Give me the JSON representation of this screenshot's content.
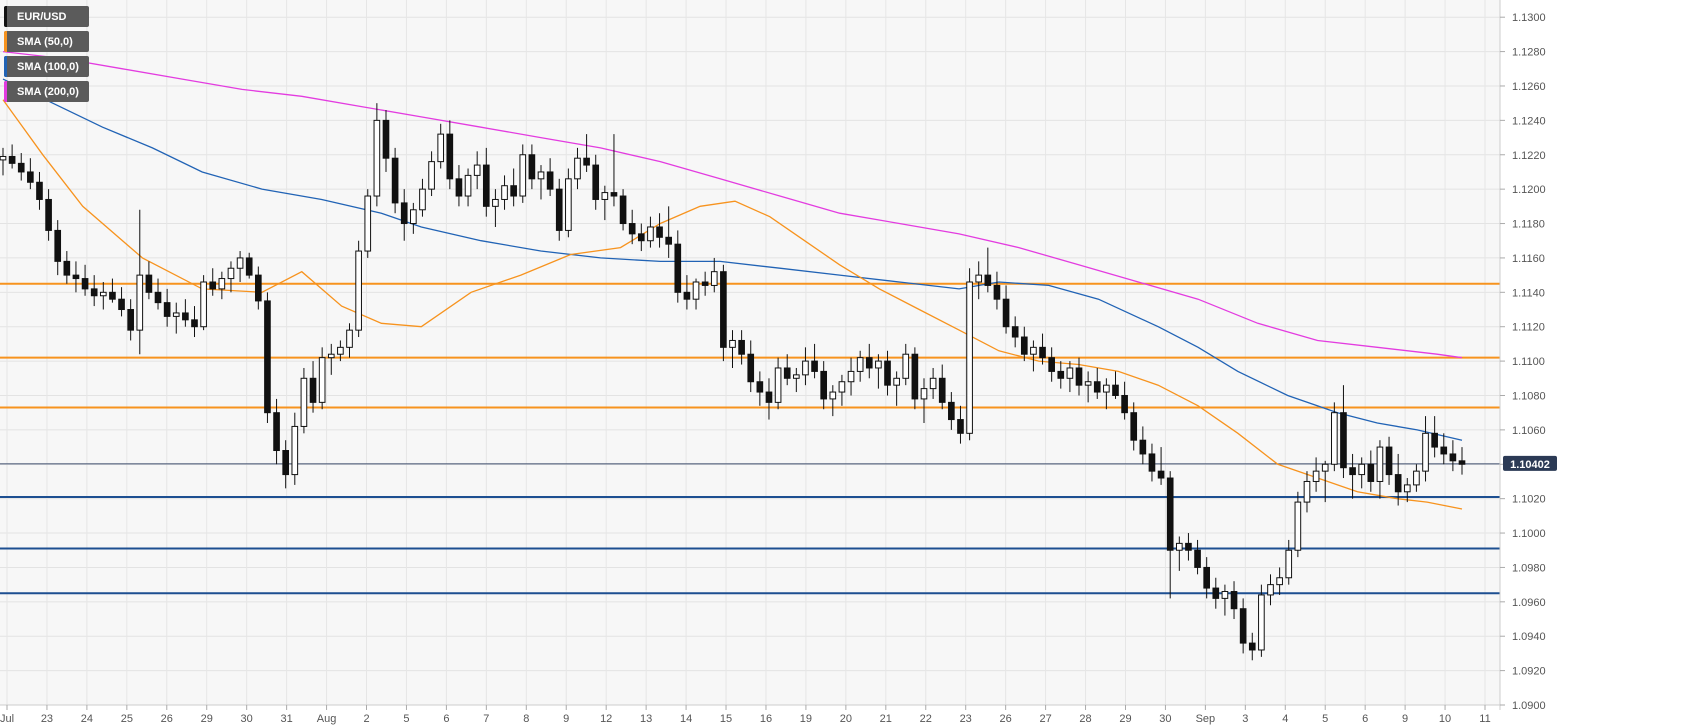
{
  "legend": [
    {
      "label": "EUR/USD",
      "color": "#111111"
    },
    {
      "label": "SMA (50,0)",
      "color": "#f7931e"
    },
    {
      "label": "SMA (100,0)",
      "color": "#2163b5"
    },
    {
      "label": "SMA (200,0)",
      "color": "#e33ce0"
    }
  ],
  "current_price_label": "1.10402",
  "chart_data": {
    "type": "candlestick",
    "title": "",
    "ylim": [
      1.09,
      1.131
    ],
    "y_ticks": [
      "1.0900",
      "1.0920",
      "1.0940",
      "1.0960",
      "1.0980",
      "1.1000",
      "1.1020",
      "1.1040",
      "1.1060",
      "1.1080",
      "1.1100",
      "1.1120",
      "1.1140",
      "1.1160",
      "1.1180",
      "1.1200",
      "1.1220",
      "1.1240",
      "1.1260",
      "1.1280",
      "1.1300"
    ],
    "x_ticks": [
      "Jul",
      "23",
      "24",
      "25",
      "26",
      "29",
      "30",
      "31",
      "Aug",
      "2",
      "5",
      "6",
      "7",
      "8",
      "9",
      "12",
      "13",
      "14",
      "15",
      "16",
      "19",
      "20",
      "21",
      "22",
      "23",
      "26",
      "27",
      "28",
      "29",
      "30",
      "Sep",
      "3",
      "4",
      "5",
      "6",
      "9",
      "10",
      "11"
    ],
    "grid": true,
    "levels": {
      "resistance": [
        1.1145,
        1.1102,
        1.1073
      ],
      "support": [
        1.1021,
        1.0991,
        1.0965
      ],
      "current": 1.10402
    },
    "colors": {
      "resistance": "#f7931e",
      "support": "#1d4f91",
      "current": "#3a4a6a",
      "sma50": "#f7931e",
      "sma100": "#2163b5",
      "sma200": "#e33ce0"
    },
    "candles_hourly_ohlc": [
      [
        1.1217,
        1.1224,
        1.1208,
        1.1219
      ],
      [
        1.1219,
        1.1226,
        1.1212,
        1.1215
      ],
      [
        1.1215,
        1.1221,
        1.1205,
        1.121
      ],
      [
        1.121,
        1.1218,
        1.12,
        1.1204
      ],
      [
        1.1204,
        1.121,
        1.1188,
        1.1194
      ],
      [
        1.1194,
        1.12,
        1.117,
        1.1176
      ],
      [
        1.1176,
        1.1182,
        1.115,
        1.1158
      ],
      [
        1.1158,
        1.1164,
        1.1145,
        1.115
      ],
      [
        1.115,
        1.1158,
        1.114,
        1.1148
      ],
      [
        1.1148,
        1.1156,
        1.1138,
        1.1142
      ],
      [
        1.1142,
        1.115,
        1.1132,
        1.1138
      ],
      [
        1.1138,
        1.1146,
        1.113,
        1.114
      ],
      [
        1.114,
        1.1148,
        1.1134,
        1.1136
      ],
      [
        1.1136,
        1.1143,
        1.1126,
        1.113
      ],
      [
        1.113,
        1.1136,
        1.1112,
        1.1118
      ],
      [
        1.1118,
        1.1188,
        1.1104,
        1.115
      ],
      [
        1.115,
        1.1158,
        1.1136,
        1.114
      ],
      [
        1.114,
        1.1148,
        1.113,
        1.1134
      ],
      [
        1.1134,
        1.1142,
        1.112,
        1.1126
      ],
      [
        1.1126,
        1.1134,
        1.1116,
        1.1128
      ],
      [
        1.1128,
        1.1136,
        1.112,
        1.1124
      ],
      [
        1.1124,
        1.1132,
        1.1114,
        1.112
      ],
      [
        1.112,
        1.115,
        1.1118,
        1.1146
      ],
      [
        1.1146,
        1.1154,
        1.1138,
        1.1142
      ],
      [
        1.1142,
        1.1152,
        1.1136,
        1.1148
      ],
      [
        1.1148,
        1.1158,
        1.114,
        1.1154
      ],
      [
        1.1154,
        1.1164,
        1.1146,
        1.116
      ],
      [
        1.116,
        1.1163,
        1.1148,
        1.115
      ],
      [
        1.115,
        1.1155,
        1.113,
        1.1135
      ],
      [
        1.1135,
        1.114,
        1.1064,
        1.107
      ],
      [
        1.107,
        1.1078,
        1.104,
        1.1048
      ],
      [
        1.1048,
        1.1054,
        1.1026,
        1.1034
      ],
      [
        1.1034,
        1.107,
        1.1028,
        1.1062
      ],
      [
        1.1062,
        1.1096,
        1.1058,
        1.109
      ],
      [
        1.109,
        1.11,
        1.107,
        1.1076
      ],
      [
        1.1076,
        1.1108,
        1.1072,
        1.1102
      ],
      [
        1.1102,
        1.111,
        1.1092,
        1.1104
      ],
      [
        1.1104,
        1.1112,
        1.11,
        1.1108
      ],
      [
        1.1108,
        1.1122,
        1.1102,
        1.1118
      ],
      [
        1.1118,
        1.117,
        1.1114,
        1.1164
      ],
      [
        1.1164,
        1.12,
        1.116,
        1.1196
      ],
      [
        1.1196,
        1.125,
        1.119,
        1.124
      ],
      [
        1.124,
        1.1246,
        1.121,
        1.1218
      ],
      [
        1.1218,
        1.1224,
        1.1186,
        1.1192
      ],
      [
        1.1192,
        1.12,
        1.117,
        1.118
      ],
      [
        1.118,
        1.1192,
        1.1174,
        1.1188
      ],
      [
        1.1188,
        1.1206,
        1.1184,
        1.12
      ],
      [
        1.12,
        1.1222,
        1.1196,
        1.1216
      ],
      [
        1.1216,
        1.1238,
        1.1212,
        1.1232
      ],
      [
        1.1232,
        1.124,
        1.12,
        1.1206
      ],
      [
        1.1206,
        1.1214,
        1.119,
        1.1196
      ],
      [
        1.1196,
        1.1212,
        1.119,
        1.1208
      ],
      [
        1.1208,
        1.1222,
        1.12,
        1.1214
      ],
      [
        1.1214,
        1.1224,
        1.1184,
        1.119
      ],
      [
        1.119,
        1.12,
        1.1178,
        1.1194
      ],
      [
        1.1194,
        1.1208,
        1.1188,
        1.1202
      ],
      [
        1.1202,
        1.1212,
        1.119,
        1.1196
      ],
      [
        1.1196,
        1.1226,
        1.1192,
        1.122
      ],
      [
        1.122,
        1.1226,
        1.12,
        1.1206
      ],
      [
        1.1206,
        1.1214,
        1.1194,
        1.121
      ],
      [
        1.121,
        1.1218,
        1.1196,
        1.12
      ],
      [
        1.12,
        1.1206,
        1.117,
        1.1176
      ],
      [
        1.1176,
        1.1212,
        1.1172,
        1.1206
      ],
      [
        1.1206,
        1.1224,
        1.12,
        1.1218
      ],
      [
        1.1218,
        1.1232,
        1.121,
        1.1214
      ],
      [
        1.1214,
        1.122,
        1.1188,
        1.1194
      ],
      [
        1.1194,
        1.1202,
        1.1182,
        1.1198
      ],
      [
        1.1198,
        1.1232,
        1.119,
        1.1196
      ],
      [
        1.1196,
        1.12,
        1.1176,
        1.118
      ],
      [
        1.118,
        1.1188,
        1.1168,
        1.1174
      ],
      [
        1.1174,
        1.118,
        1.1164,
        1.117
      ],
      [
        1.117,
        1.1184,
        1.1166,
        1.1178
      ],
      [
        1.1178,
        1.1186,
        1.1166,
        1.1172
      ],
      [
        1.1172,
        1.119,
        1.116,
        1.1168
      ],
      [
        1.1168,
        1.1176,
        1.1134,
        1.114
      ],
      [
        1.114,
        1.115,
        1.113,
        1.1136
      ],
      [
        1.1136,
        1.1148,
        1.113,
        1.1146
      ],
      [
        1.1146,
        1.1152,
        1.1138,
        1.1144
      ],
      [
        1.1144,
        1.116,
        1.114,
        1.1152
      ],
      [
        1.1152,
        1.1156,
        1.11,
        1.1108
      ],
      [
        1.1108,
        1.1118,
        1.1096,
        1.1112
      ],
      [
        1.1112,
        1.1118,
        1.1098,
        1.1104
      ],
      [
        1.1104,
        1.1112,
        1.1082,
        1.1088
      ],
      [
        1.1088,
        1.1094,
        1.1074,
        1.1082
      ],
      [
        1.1082,
        1.109,
        1.1066,
        1.1076
      ],
      [
        1.1076,
        1.1102,
        1.1072,
        1.1096
      ],
      [
        1.1096,
        1.1104,
        1.1086,
        1.109
      ],
      [
        1.109,
        1.1096,
        1.1082,
        1.1092
      ],
      [
        1.1092,
        1.1108,
        1.1086,
        1.11
      ],
      [
        1.11,
        1.111,
        1.109,
        1.1094
      ],
      [
        1.1094,
        1.11,
        1.1072,
        1.1078
      ],
      [
        1.1078,
        1.1086,
        1.1068,
        1.1082
      ],
      [
        1.1082,
        1.1092,
        1.1074,
        1.1088
      ],
      [
        1.1088,
        1.1102,
        1.108,
        1.1094
      ],
      [
        1.1094,
        1.1106,
        1.1088,
        1.1102
      ],
      [
        1.1102,
        1.111,
        1.109,
        1.1096
      ],
      [
        1.1096,
        1.1104,
        1.1084,
        1.11
      ],
      [
        1.11,
        1.1106,
        1.108,
        1.1086
      ],
      [
        1.1086,
        1.1094,
        1.1074,
        1.109
      ],
      [
        1.109,
        1.111,
        1.1086,
        1.1104
      ],
      [
        1.1104,
        1.1108,
        1.1072,
        1.1078
      ],
      [
        1.1078,
        1.109,
        1.1064,
        1.1084
      ],
      [
        1.1084,
        1.1096,
        1.1078,
        1.109
      ],
      [
        1.109,
        1.1098,
        1.1072,
        1.1076
      ],
      [
        1.1076,
        1.1082,
        1.106,
        1.1066
      ],
      [
        1.1066,
        1.1074,
        1.1052,
        1.1058
      ],
      [
        1.1058,
        1.1154,
        1.1054,
        1.1146
      ],
      [
        1.1146,
        1.1158,
        1.1136,
        1.115
      ],
      [
        1.115,
        1.1166,
        1.114,
        1.1144
      ],
      [
        1.1144,
        1.1152,
        1.113,
        1.1136
      ],
      [
        1.1136,
        1.1144,
        1.1116,
        1.112
      ],
      [
        1.112,
        1.1126,
        1.1108,
        1.1114
      ],
      [
        1.1114,
        1.112,
        1.11,
        1.1104
      ],
      [
        1.1104,
        1.1112,
        1.1094,
        1.1108
      ],
      [
        1.1108,
        1.1116,
        1.1098,
        1.1102
      ],
      [
        1.1102,
        1.1108,
        1.1088,
        1.1094
      ],
      [
        1.1094,
        1.11,
        1.1084,
        1.109
      ],
      [
        1.109,
        1.11,
        1.1082,
        1.1096
      ],
      [
        1.1096,
        1.1102,
        1.108,
        1.1086
      ],
      [
        1.1086,
        1.1094,
        1.1076,
        1.1088
      ],
      [
        1.1088,
        1.1096,
        1.1078,
        1.1082
      ],
      [
        1.1082,
        1.109,
        1.1072,
        1.1086
      ],
      [
        1.1086,
        1.1094,
        1.1078,
        1.108
      ],
      [
        1.108,
        1.1088,
        1.1066,
        1.107
      ],
      [
        1.107,
        1.1076,
        1.1048,
        1.1054
      ],
      [
        1.1054,
        1.1062,
        1.104,
        1.1046
      ],
      [
        1.1046,
        1.1052,
        1.103,
        1.1036
      ],
      [
        1.1036,
        1.105,
        1.1028,
        1.1032
      ],
      [
        1.1032,
        1.1036,
        1.0962,
        1.099
      ],
      [
        1.099,
        1.0998,
        1.0978,
        1.0994
      ],
      [
        1.0994,
        1.1,
        1.0984,
        1.099
      ],
      [
        1.099,
        1.0996,
        1.0976,
        1.098
      ],
      [
        1.098,
        1.0986,
        1.0962,
        1.0968
      ],
      [
        1.0968,
        1.0974,
        1.0956,
        1.0962
      ],
      [
        1.0962,
        1.097,
        1.0952,
        1.0966
      ],
      [
        1.0966,
        1.0972,
        1.095,
        1.0956
      ],
      [
        1.0956,
        1.0962,
        1.093,
        1.0936
      ],
      [
        1.0936,
        1.0942,
        1.0926,
        1.0932
      ],
      [
        1.0932,
        1.097,
        1.0928,
        1.0964
      ],
      [
        1.0964,
        1.0976,
        1.0958,
        1.097
      ],
      [
        1.097,
        1.098,
        1.0964,
        1.0974
      ],
      [
        1.0974,
        1.0996,
        1.097,
        1.099
      ],
      [
        1.099,
        1.1024,
        1.0986,
        1.1018
      ],
      [
        1.1018,
        1.1036,
        1.1012,
        1.103
      ],
      [
        1.103,
        1.1044,
        1.1024,
        1.1036
      ],
      [
        1.1036,
        1.1042,
        1.1018,
        1.104
      ],
      [
        1.104,
        1.1076,
        1.1036,
        1.107
      ],
      [
        1.107,
        1.1086,
        1.1032,
        1.1038
      ],
      [
        1.1038,
        1.1046,
        1.102,
        1.1034
      ],
      [
        1.1034,
        1.1044,
        1.1026,
        1.104
      ],
      [
        1.104,
        1.1048,
        1.1024,
        1.103
      ],
      [
        1.103,
        1.1054,
        1.102,
        1.105
      ],
      [
        1.105,
        1.1056,
        1.1028,
        1.1034
      ],
      [
        1.1034,
        1.1046,
        1.1016,
        1.1024
      ],
      [
        1.1024,
        1.1032,
        1.1018,
        1.1028
      ],
      [
        1.1028,
        1.104,
        1.1024,
        1.1036
      ],
      [
        1.1036,
        1.1068,
        1.103,
        1.1058
      ],
      [
        1.1058,
        1.1068,
        1.1044,
        1.105
      ],
      [
        1.105,
        1.1058,
        1.104,
        1.1046
      ],
      [
        1.1046,
        1.1054,
        1.1036,
        1.1042
      ],
      [
        1.1042,
        1.105,
        1.1034,
        1.104
      ]
    ],
    "sma50": [
      [
        0,
        1.1252
      ],
      [
        40,
        1.122
      ],
      [
        80,
        1.119
      ],
      [
        140,
        1.116
      ],
      [
        200,
        1.1142
      ],
      [
        260,
        1.114
      ],
      [
        300,
        1.1152
      ],
      [
        340,
        1.1132
      ],
      [
        380,
        1.1122
      ],
      [
        420,
        1.112
      ],
      [
        470,
        1.114
      ],
      [
        520,
        1.115
      ],
      [
        570,
        1.1162
      ],
      [
        620,
        1.1166
      ],
      [
        660,
        1.118
      ],
      [
        700,
        1.119
      ],
      [
        735,
        1.1193
      ],
      [
        770,
        1.1184
      ],
      [
        800,
        1.1172
      ],
      [
        840,
        1.1156
      ],
      [
        880,
        1.1142
      ],
      [
        920,
        1.113
      ],
      [
        960,
        1.1118
      ],
      [
        1000,
        1.1106
      ],
      [
        1040,
        1.11
      ],
      [
        1080,
        1.1098
      ],
      [
        1120,
        1.1094
      ],
      [
        1160,
        1.1086
      ],
      [
        1200,
        1.1074
      ],
      [
        1240,
        1.1058
      ],
      [
        1280,
        1.104
      ],
      [
        1320,
        1.1032
      ],
      [
        1360,
        1.1024
      ],
      [
        1400,
        1.102
      ],
      [
        1430,
        1.1018
      ],
      [
        1465,
        1.1014
      ]
    ],
    "sma100": [
      [
        0,
        1.1264
      ],
      [
        50,
        1.125
      ],
      [
        100,
        1.1236
      ],
      [
        150,
        1.1224
      ],
      [
        200,
        1.121
      ],
      [
        260,
        1.12
      ],
      [
        320,
        1.1194
      ],
      [
        380,
        1.1186
      ],
      [
        420,
        1.1178
      ],
      [
        480,
        1.117
      ],
      [
        540,
        1.1164
      ],
      [
        600,
        1.116
      ],
      [
        660,
        1.1158
      ],
      [
        720,
        1.1158
      ],
      [
        780,
        1.1154
      ],
      [
        840,
        1.115
      ],
      [
        900,
        1.1146
      ],
      [
        960,
        1.1142
      ],
      [
        1000,
        1.1146
      ],
      [
        1050,
        1.1144
      ],
      [
        1100,
        1.1136
      ],
      [
        1160,
        1.112
      ],
      [
        1200,
        1.1108
      ],
      [
        1240,
        1.1094
      ],
      [
        1290,
        1.108
      ],
      [
        1340,
        1.107
      ],
      [
        1380,
        1.1064
      ],
      [
        1420,
        1.106
      ],
      [
        1465,
        1.1054
      ]
    ],
    "sma200": [
      [
        0,
        1.128
      ],
      [
        60,
        1.1276
      ],
      [
        120,
        1.127
      ],
      [
        180,
        1.1264
      ],
      [
        240,
        1.1258
      ],
      [
        300,
        1.1254
      ],
      [
        360,
        1.1248
      ],
      [
        420,
        1.1242
      ],
      [
        480,
        1.1236
      ],
      [
        540,
        1.123
      ],
      [
        600,
        1.1224
      ],
      [
        660,
        1.1216
      ],
      [
        720,
        1.1206
      ],
      [
        780,
        1.1196
      ],
      [
        840,
        1.1186
      ],
      [
        900,
        1.118
      ],
      [
        960,
        1.1174
      ],
      [
        1020,
        1.1166
      ],
      [
        1080,
        1.1156
      ],
      [
        1140,
        1.1146
      ],
      [
        1200,
        1.1136
      ],
      [
        1260,
        1.1122
      ],
      [
        1320,
        1.1112
      ],
      [
        1380,
        1.1108
      ],
      [
        1440,
        1.1104
      ],
      [
        1465,
        1.1102
      ]
    ]
  }
}
